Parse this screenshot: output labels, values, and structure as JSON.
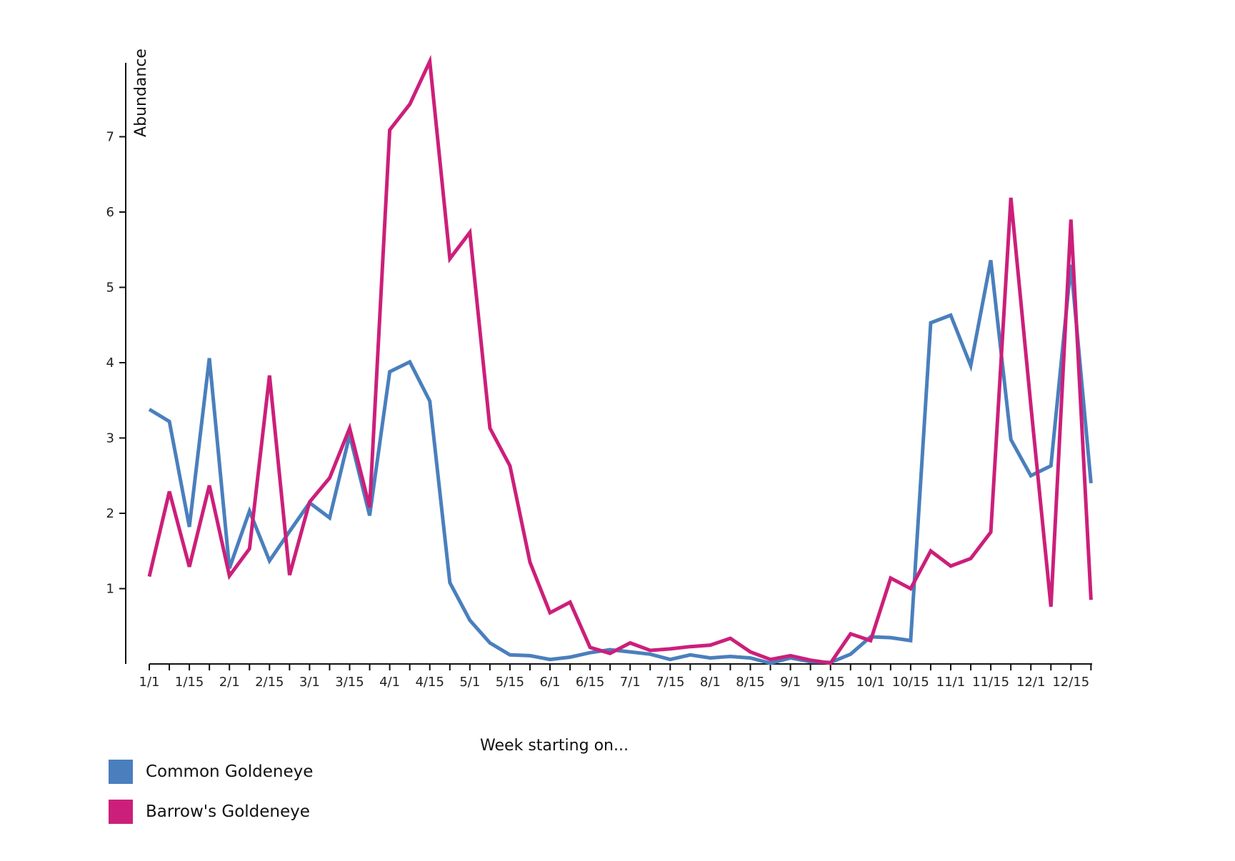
{
  "chart_data": {
    "type": "line",
    "xlabel": "Week starting on...",
    "ylabel": "Abundance",
    "ylim": [
      0,
      8
    ],
    "y_ticks": [
      1,
      2,
      3,
      4,
      5,
      6,
      7
    ],
    "x_tick_labels": [
      "1/1",
      "1/15",
      "2/1",
      "2/15",
      "3/1",
      "3/15",
      "4/1",
      "4/15",
      "5/1",
      "5/15",
      "6/1",
      "6/15",
      "7/1",
      "7/15",
      "8/1",
      "8/15",
      "9/1",
      "9/15",
      "10/1",
      "10/15",
      "11/1",
      "11/15",
      "12/1",
      "12/15"
    ],
    "weeks_per_year": 48,
    "grid": false,
    "legend_position": "bottom-left",
    "series": [
      {
        "name": "Common Goldeneye",
        "color": "#4a7fbd",
        "values": [
          3.38,
          3.22,
          1.82,
          4.06,
          1.27,
          2.03,
          1.37,
          1.76,
          2.14,
          1.94,
          3.04,
          1.97,
          3.88,
          4.01,
          3.49,
          1.08,
          0.58,
          0.28,
          0.12,
          0.11,
          0.06,
          0.09,
          0.15,
          0.19,
          0.16,
          0.13,
          0.06,
          0.12,
          0.08,
          0.1,
          0.08,
          0.01,
          0.08,
          0.03,
          0.02,
          0.13,
          0.36,
          0.35,
          0.31,
          4.53,
          4.63,
          3.96,
          5.36,
          2.98,
          2.5,
          2.63,
          5.3,
          2.4
        ]
      },
      {
        "name": "Barrow's Goldeneye",
        "color": "#cc1f7a",
        "values": [
          1.16,
          2.29,
          1.29,
          2.37,
          1.17,
          1.53,
          3.83,
          1.18,
          2.15,
          2.47,
          3.13,
          2.08,
          7.09,
          7.43,
          8.0,
          5.38,
          5.73,
          3.13,
          2.63,
          1.35,
          0.68,
          0.82,
          0.22,
          0.14,
          0.28,
          0.18,
          0.2,
          0.23,
          0.25,
          0.34,
          0.16,
          0.06,
          0.11,
          0.05,
          0.01,
          0.4,
          0.31,
          1.14,
          1.0,
          1.5,
          1.3,
          1.4,
          1.75,
          6.19,
          3.43,
          0.76,
          5.9,
          0.85
        ]
      }
    ]
  }
}
